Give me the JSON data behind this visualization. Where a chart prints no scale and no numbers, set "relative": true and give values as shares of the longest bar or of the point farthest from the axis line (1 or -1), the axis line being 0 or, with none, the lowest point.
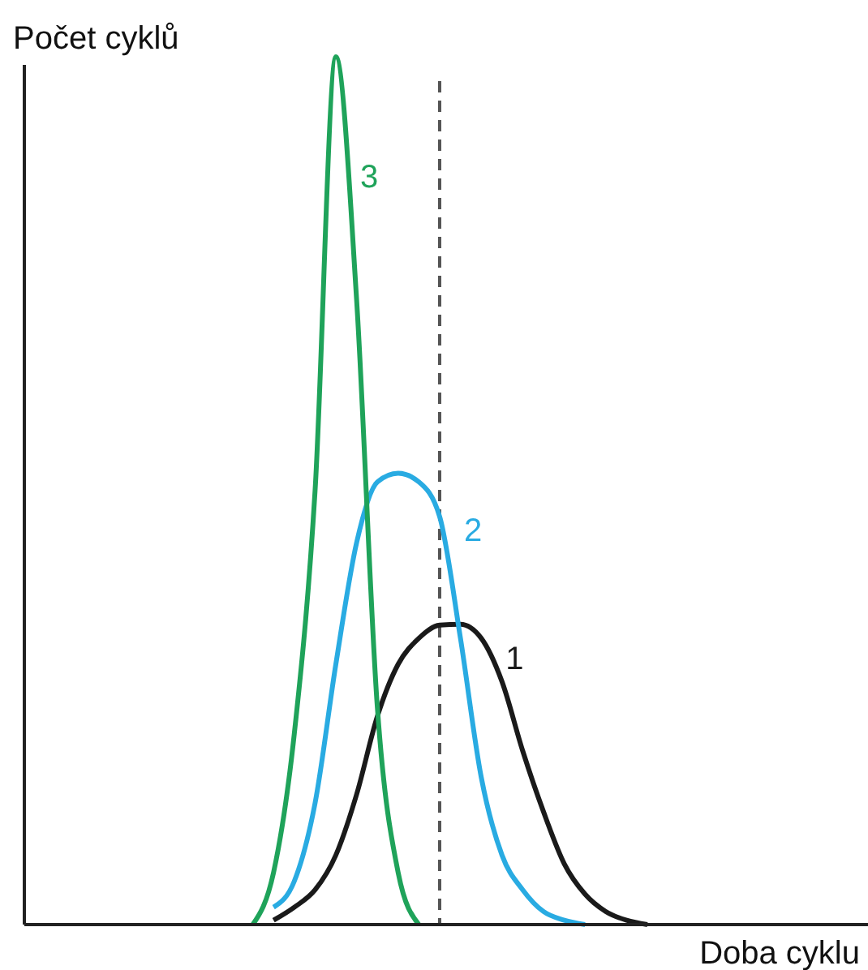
{
  "chart_data": {
    "type": "line",
    "relative": true,
    "xlabel": "Doba cyklu",
    "ylabel": "Počet cyklů",
    "categories": [
      null,
      null,
      null,
      null,
      null,
      null,
      null,
      null,
      null,
      null,
      null,
      null,
      null,
      null,
      null,
      null,
      null,
      null,
      null,
      null,
      null,
      null,
      null,
      null,
      null,
      null,
      null,
      null,
      null,
      null,
      null,
      null,
      null,
      null,
      null,
      null,
      null,
      null,
      null,
      null,
      null
    ],
    "series": [
      {
        "name": "1",
        "color": "#1a1a1a",
        "values": [
          null,
          null,
          null,
          null,
          null,
          null,
          null,
          null,
          null,
          null,
          null,
          null,
          0.005,
          0.02,
          0.04,
          0.08,
          0.15,
          0.24,
          0.3,
          0.33,
          0.345,
          0.346,
          0.33,
          0.28,
          0.2,
          0.13,
          0.07,
          0.035,
          0.015,
          0.005,
          0,
          null,
          null,
          null,
          null,
          null,
          null,
          null,
          null,
          null,
          null
        ]
      },
      {
        "name": "2",
        "color": "#29abe2",
        "values": [
          null,
          null,
          null,
          null,
          null,
          null,
          null,
          null,
          null,
          null,
          null,
          null,
          0.02,
          0.05,
          0.14,
          0.3,
          0.44,
          0.51,
          0.52,
          0.51,
          0.47,
          0.33,
          0.17,
          0.08,
          0.04,
          0.015,
          0.005,
          0,
          null,
          null,
          null,
          null,
          null,
          null,
          null,
          null,
          null,
          null,
          null,
          null,
          null
        ]
      },
      {
        "name": "3",
        "color": "#1fa35a",
        "values": [
          null,
          null,
          null,
          null,
          null,
          null,
          null,
          null,
          null,
          null,
          null,
          0,
          0.06,
          0.22,
          0.5,
          1,
          0.72,
          0.25,
          0.06,
          0,
          null,
          null,
          null,
          null,
          null,
          null,
          null,
          null,
          null,
          null,
          null,
          null,
          null,
          null,
          null,
          null,
          null,
          null,
          null,
          null,
          null
        ]
      }
    ],
    "line_style": "solid",
    "marker": "none"
  }
}
